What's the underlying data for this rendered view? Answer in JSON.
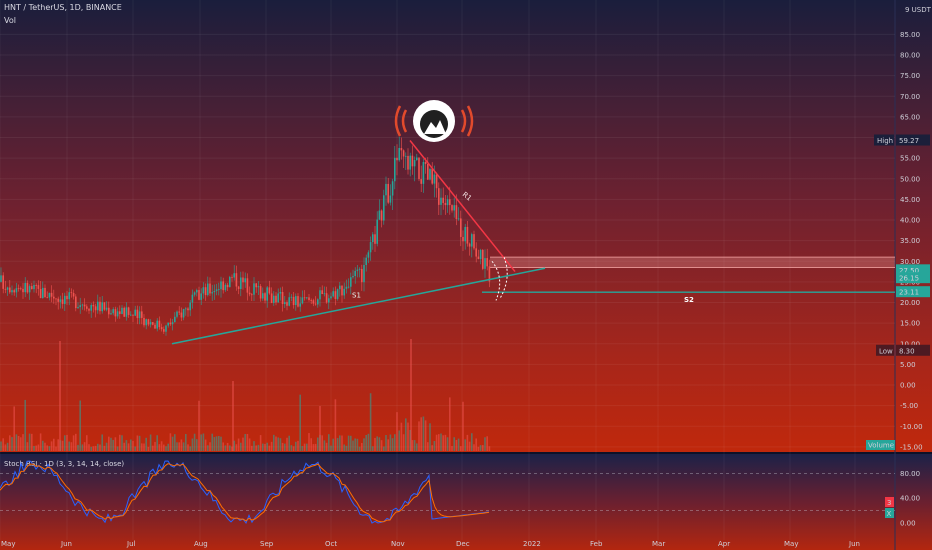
{
  "header": {
    "symbol_line": "HNT / TetherUS, 1D, BINANCE",
    "volume_label": "Vol"
  },
  "chart_data": {
    "type": "candlestick",
    "title": "HNT / TetherUS, 1D, BINANCE",
    "unit": "USDT",
    "y_ticks": [
      "85.00",
      "80.00",
      "75.00",
      "70.00",
      "65.00",
      "60.00",
      "55.00",
      "50.00",
      "45.00",
      "40.00",
      "35.00",
      "30.00",
      "25.00",
      "20.00",
      "15.00",
      "10.00",
      "5.00",
      "0.00",
      "-5.00",
      "-10.00",
      "-15.00"
    ],
    "x_ticks": [
      "May",
      "Jun",
      "Jul",
      "Aug",
      "Sep",
      "Oct",
      "Nov",
      "Dec",
      "2022",
      "Feb",
      "Mar",
      "Apr",
      "May",
      "Jun"
    ],
    "ylim": [
      -15,
      88
    ],
    "grid": true,
    "price_path": [
      [
        "May",
        25
      ],
      [
        "Jun",
        21
      ],
      [
        "Jul",
        17
      ],
      [
        "Jul",
        14
      ],
      [
        "Aug",
        22
      ],
      [
        "Aug",
        26
      ],
      [
        "Sep",
        22
      ],
      [
        "Sep",
        20
      ],
      [
        "Oct",
        22
      ],
      [
        "Oct",
        27
      ],
      [
        "Nov",
        55
      ],
      [
        "Nov",
        50
      ],
      [
        "Dec",
        38
      ],
      [
        "Dec",
        27
      ]
    ],
    "high": {
      "label": "High",
      "value": "59.27"
    },
    "low": {
      "label": "Low",
      "value": "8.30"
    },
    "current_price_labels": [
      "27.50",
      "26.15",
      "23.11"
    ],
    "trendlines": [
      {
        "label": "S1"
      },
      {
        "label": "R1"
      },
      {
        "label": "S2"
      }
    ],
    "resistance_zone": [
      28.5,
      31
    ],
    "volume_label": "Volume",
    "stoch_rsi": {
      "title": "Stoch RSI · 1D (3, 3, 14, 14, close)",
      "y_ticks": [
        "80.00",
        "40.00",
        "0.00"
      ],
      "levels": [
        80,
        20
      ],
      "k_color": "#2962ff",
      "d_color": "#ff6d00",
      "marker_values": [
        "20",
        "3"
      ]
    },
    "colors": {
      "up": "#26a69a",
      "down": "#ef5350",
      "support": "#26a69a",
      "resistance": "#f23645",
      "zone": "#f5a5a5",
      "bg_top": "#1a1e3c",
      "bg_bottom": "#c0280c"
    }
  }
}
